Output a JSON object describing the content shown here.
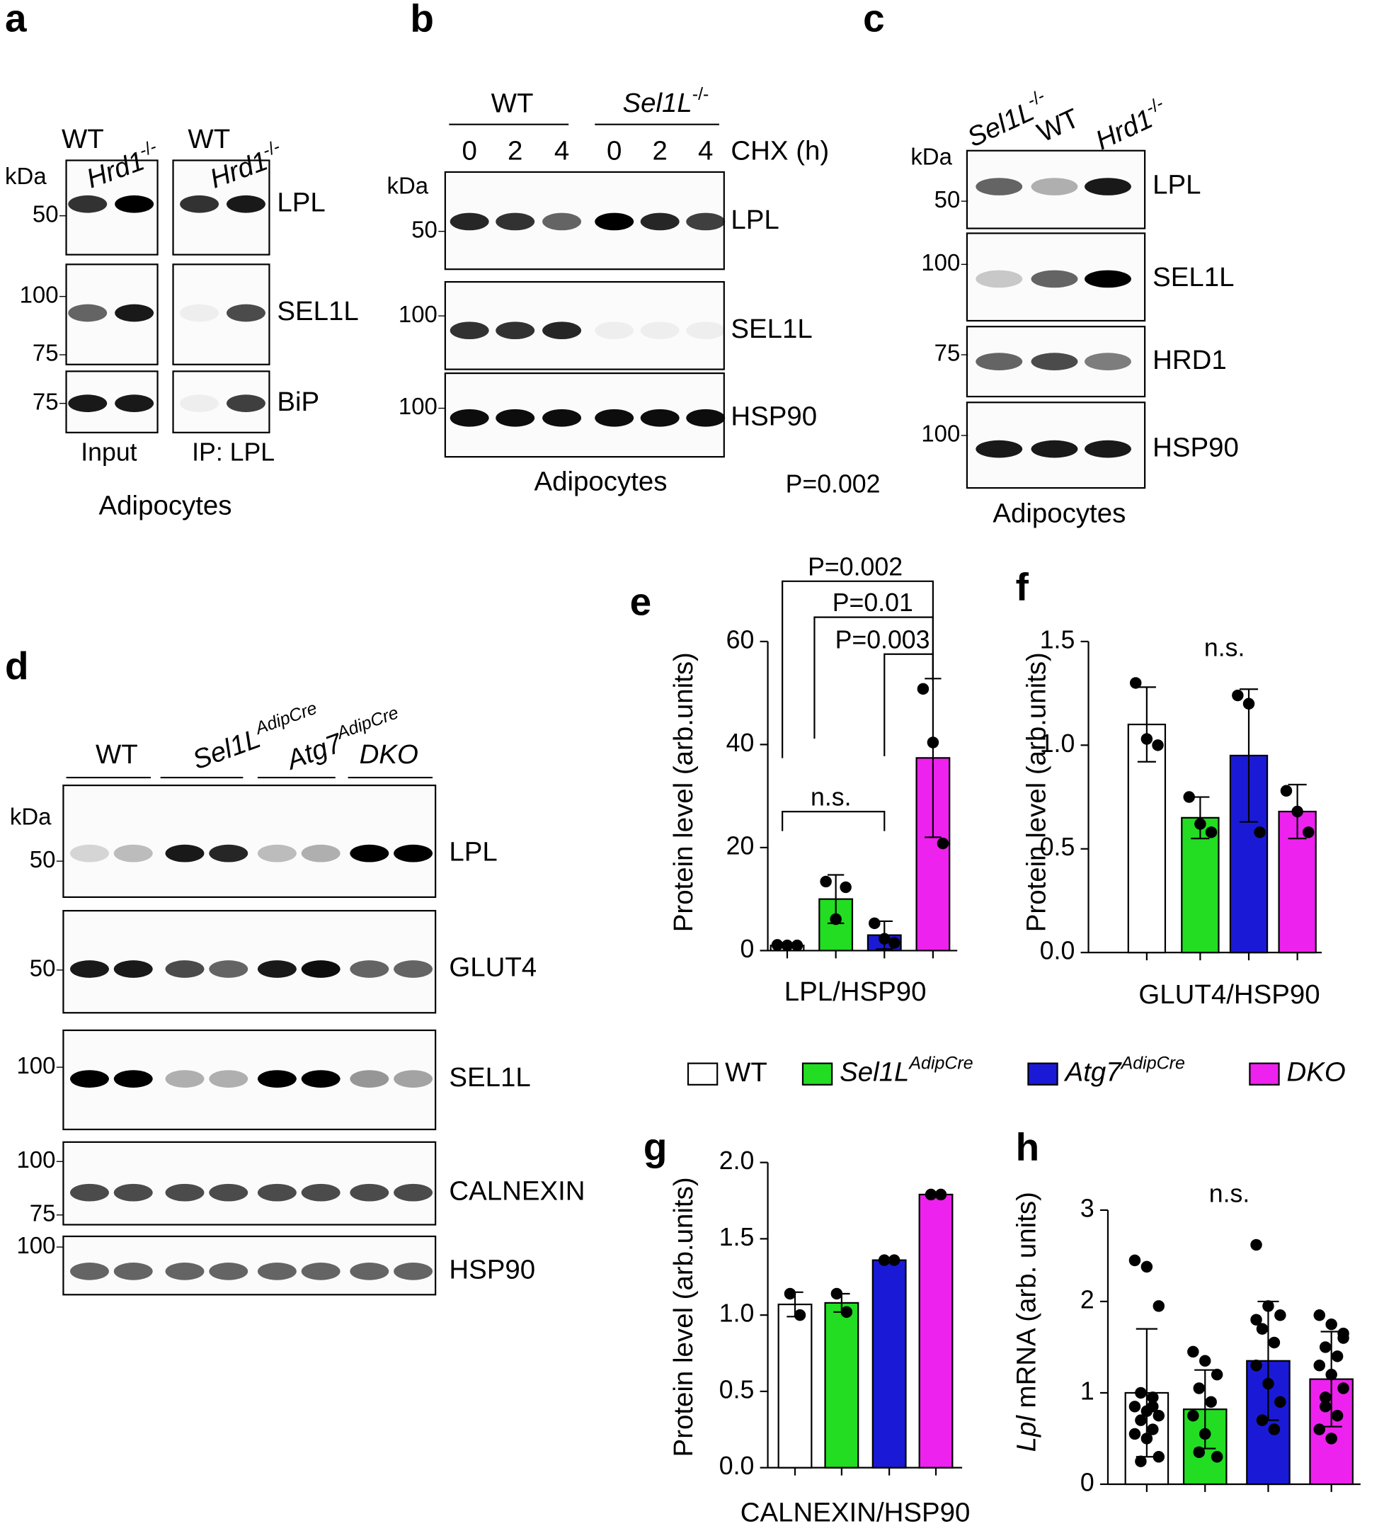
{
  "blots": {
    "a": {
      "letter": "a",
      "lanes": [
        "WT",
        {
          "parts": [
            {
              "text": "Hrd1",
              "italic": true
            },
            {
              "text": "-/-",
              "sup": true
            }
          ]
        },
        "WT",
        {
          "parts": [
            {
              "text": "Hrd1",
              "italic": true
            },
            {
              "text": "-/-",
              "sup": true
            }
          ]
        }
      ],
      "unit": "kDa",
      "rows": [
        {
          "label": "LPL",
          "markers": [
            50
          ]
        },
        {
          "label": "SEL1L",
          "markers": [
            100,
            75
          ]
        },
        {
          "label": "BiP",
          "markers": [
            75
          ]
        }
      ],
      "groups": [
        "Input",
        "IP: LPL"
      ],
      "caption": "Adipocytes"
    },
    "b": {
      "letter": "b",
      "groups": [
        "WT",
        {
          "parts": [
            {
              "text": "Sel1L",
              "italic": true
            },
            {
              "text": "-/-",
              "sup": true
            }
          ]
        }
      ],
      "lanes": [
        0,
        2,
        4,
        0,
        2,
        4
      ],
      "treatment": "CHX (h)",
      "unit": "kDa",
      "rows": [
        {
          "label": "LPL",
          "markers": [
            50
          ]
        },
        {
          "label": "SEL1L",
          "markers": [
            100
          ]
        },
        {
          "label": "HSP90",
          "markers": [
            100
          ]
        }
      ],
      "caption": "Adipocytes",
      "note": "P=0.002"
    },
    "c": {
      "letter": "c",
      "lanes": [
        {
          "parts": [
            {
              "text": "Sel1L",
              "italic": true
            },
            {
              "text": "-/-",
              "sup": true
            }
          ]
        },
        "WT",
        {
          "parts": [
            {
              "text": "Hrd1",
              "italic": true
            },
            {
              "text": "-/-",
              "sup": true
            }
          ]
        }
      ],
      "unit": "kDa",
      "rows": [
        {
          "label": "LPL",
          "markers": [
            50
          ]
        },
        {
          "label": "SEL1L",
          "markers": [
            100
          ]
        },
        {
          "label": "HRD1",
          "markers": [
            75
          ]
        },
        {
          "label": "HSP90",
          "markers": [
            100
          ]
        }
      ],
      "caption": "Adipocytes"
    },
    "d": {
      "letter": "d",
      "groups": [
        "WT",
        {
          "parts": [
            {
              "text": "Sel1L",
              "italic": true
            },
            {
              "text": "AdipCre",
              "italic": true,
              "sup": true
            }
          ]
        },
        {
          "parts": [
            {
              "text": "Atg7",
              "italic": true
            },
            {
              "text": "AdipCre",
              "italic": true,
              "sup": true
            }
          ]
        },
        {
          "parts": [
            {
              "text": "DKO",
              "italic": true
            }
          ]
        }
      ],
      "unit": "kDa",
      "rows": [
        {
          "label": "LPL",
          "markers": [
            50
          ]
        },
        {
          "label": "GLUT4",
          "markers": [
            50
          ]
        },
        {
          "label": "SEL1L",
          "markers": [
            100
          ]
        },
        {
          "label": "CALNEXIN",
          "markers": [
            100,
            75
          ]
        },
        {
          "label": "HSP90",
          "markers": [
            100
          ]
        }
      ]
    }
  },
  "legend": {
    "series": [
      {
        "name": "WT",
        "color": "#ffffff"
      },
      {
        "name": {
          "parts": [
            {
              "text": "Sel1L",
              "italic": true
            },
            {
              "text": "AdipCre",
              "italic": true,
              "sup": true
            }
          ]
        },
        "color": "#22dd22"
      },
      {
        "name": {
          "parts": [
            {
              "text": "Atg7",
              "italic": true
            },
            {
              "text": "AdipCre",
              "italic": true,
              "sup": true
            }
          ]
        },
        "color": "#1a1ad6"
      },
      {
        "name": {
          "parts": [
            {
              "text": "DKO",
              "italic": true
            }
          ]
        },
        "color": "#ee22ee"
      }
    ]
  },
  "chart_data": [
    {
      "type": "bar",
      "letter": "e",
      "ylabel": "Protein level (arb.units)",
      "xlabel": "LPL/HSP90",
      "ylim": [
        0,
        60
      ],
      "yticks": [
        0,
        20,
        40,
        60
      ],
      "values": [
        1,
        10,
        3,
        37.4
      ],
      "errors": [
        0.2,
        4.7,
        2.7,
        15.4
      ],
      "points": [
        [
          1.1,
          1,
          1
        ],
        [
          13.4,
          6.1,
          12.3
        ],
        [
          5.3,
          2.3,
          1.5
        ],
        [
          50.8,
          40.4,
          20.8
        ]
      ],
      "annotations": [
        "P=0.002",
        "P=0.01",
        "P=0.003",
        "n.s."
      ]
    },
    {
      "type": "bar",
      "letter": "f",
      "ylabel": "Protein level (arb.units)",
      "xlabel": "GLUT4/HSP90",
      "ylim": [
        0,
        1.5
      ],
      "yticks": [
        {
          "value": 0,
          "label": "0.0"
        },
        0.5,
        {
          "value": 1,
          "label": "1.0"
        },
        1.5
      ],
      "values": [
        1.1,
        0.65,
        0.95,
        0.68
      ],
      "errors": [
        0.18,
        0.1,
        0.32,
        0.13
      ],
      "points": [
        [
          1.3,
          1.03,
          1.0
        ],
        [
          0.75,
          0.62,
          0.58
        ],
        [
          1.24,
          1.2,
          0.58
        ],
        [
          0.78,
          0.68,
          0.58
        ]
      ],
      "annotations": [
        "n.s."
      ]
    },
    {
      "type": "bar",
      "letter": "g",
      "ylabel": "Protein level (arb.units)",
      "xlabel": "CALNEXIN/HSP90",
      "ylim": [
        0,
        2
      ],
      "yticks": [
        {
          "value": 0,
          "label": "0.0"
        },
        0.5,
        {
          "value": 1,
          "label": "1.0"
        },
        1.5,
        {
          "value": 2,
          "label": "2.0"
        }
      ],
      "values": [
        1.07,
        1.08,
        1.36,
        1.79
      ],
      "errors": [
        0.08,
        0.06,
        0.01,
        0.01
      ],
      "points": [
        [
          1.14,
          1.0
        ],
        [
          1.14,
          1.02
        ],
        [
          1.36,
          1.36
        ],
        [
          1.79,
          1.79
        ]
      ],
      "annotations": []
    },
    {
      "type": "bar",
      "letter": "h",
      "ylabel": {
        "parts": [
          {
            "text": "Lpl",
            "italic": true
          },
          {
            "text": " mRNA (arb. units)"
          }
        ]
      },
      "ylim": [
        0,
        3
      ],
      "yticks": [
        0,
        1,
        2,
        3
      ],
      "values": [
        1.0,
        0.82,
        1.35,
        1.15
      ],
      "errors": [
        0.7,
        0.43,
        0.65,
        0.52
      ],
      "points": [
        [
          2.45,
          2.38,
          1.95,
          1.0,
          0.95,
          0.85,
          0.8,
          0.75,
          0.7,
          0.6,
          0.55,
          0.5,
          0.3,
          0.25,
          0.85
        ],
        [
          1.45,
          1.35,
          1.2,
          1.05,
          0.9,
          0.75,
          0.55,
          0.3,
          0.35
        ],
        [
          2.62,
          1.95,
          1.85,
          1.7,
          1.55,
          1.3,
          1.1,
          0.9,
          0.7,
          0.6,
          1.8
        ],
        [
          1.85,
          1.75,
          1.65,
          1.5,
          1.4,
          1.3,
          1.2,
          1.05,
          0.85,
          0.75,
          0.6,
          0.5,
          1.6,
          0.95
        ]
      ],
      "annotations": [
        "n.s."
      ]
    }
  ]
}
